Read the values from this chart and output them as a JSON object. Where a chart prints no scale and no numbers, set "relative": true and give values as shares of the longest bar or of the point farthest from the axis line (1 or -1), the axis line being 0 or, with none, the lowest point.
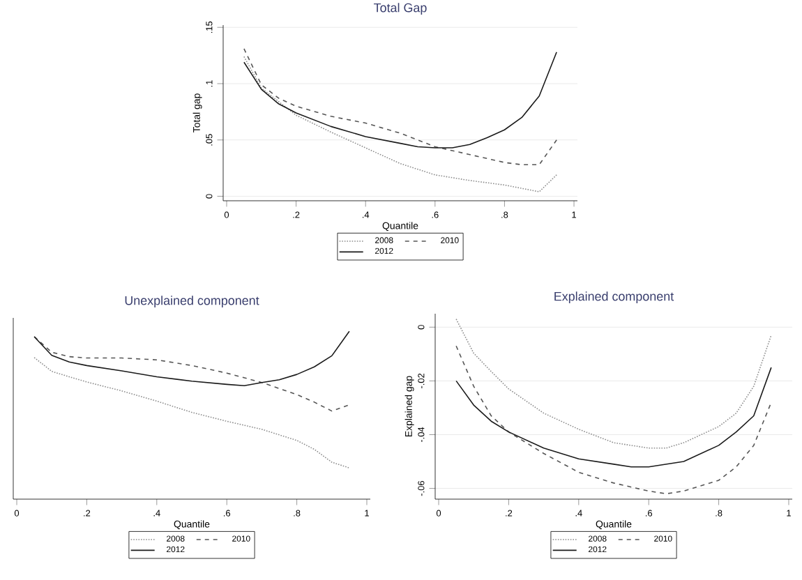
{
  "chart_data": [
    {
      "type": "line",
      "title": "Total Gap",
      "xlabel": "Quantile",
      "ylabel": "Total gap",
      "xlim": [
        -0.01,
        1.01
      ],
      "ylim": [
        -0.004,
        0.152
      ],
      "xticks": [
        0,
        {
          "value": 0.2,
          "label": ".2"
        },
        {
          "value": 0.4,
          "label": ".4"
        },
        {
          "value": 0.6,
          "label": ".6"
        },
        {
          "value": 0.8,
          "label": ".8"
        },
        1
      ],
      "yticks": [
        0,
        {
          "value": 0.05,
          "label": ".05"
        },
        {
          "value": 0.1,
          "label": ".1"
        },
        {
          "value": 0.15,
          "label": ".15"
        }
      ],
      "grid": "y",
      "legend": "bottom",
      "series": [
        {
          "name": "2008",
          "color": "#8c8c8c",
          "line_style": "dotted",
          "x": [
            0.05,
            0.1,
            0.15,
            0.2,
            0.3,
            0.4,
            0.5,
            0.6,
            0.7,
            0.8,
            0.85,
            0.9,
            0.95
          ],
          "values": [
            0.124,
            0.096,
            0.084,
            0.072,
            0.057,
            0.043,
            0.029,
            0.019,
            0.014,
            0.01,
            0.007,
            0.004,
            0.019
          ]
        },
        {
          "name": "2010",
          "color": "#555555",
          "line_style": "dashed",
          "x": [
            0.05,
            0.1,
            0.15,
            0.2,
            0.3,
            0.4,
            0.5,
            0.6,
            0.7,
            0.8,
            0.85,
            0.9,
            0.95
          ],
          "values": [
            0.131,
            0.099,
            0.087,
            0.08,
            0.071,
            0.065,
            0.056,
            0.044,
            0.037,
            0.03,
            0.028,
            0.028,
            0.05
          ]
        },
        {
          "name": "2012",
          "color": "#1a1a1a",
          "line_style": "solid",
          "x": [
            0.05,
            0.1,
            0.15,
            0.2,
            0.3,
            0.4,
            0.5,
            0.55,
            0.6,
            0.65,
            0.7,
            0.75,
            0.8,
            0.85,
            0.9,
            0.95
          ],
          "values": [
            0.119,
            0.095,
            0.082,
            0.074,
            0.062,
            0.053,
            0.047,
            0.044,
            0.043,
            0.043,
            0.046,
            0.052,
            0.059,
            0.07,
            0.089,
            0.128
          ]
        }
      ]
    },
    {
      "type": "line",
      "title": "Unexplained component",
      "xlabel": "Quantile",
      "relative": true,
      "xlim": [
        -0.01,
        1.01
      ],
      "xticks": [
        0,
        {
          "value": 0.2,
          "label": ".2"
        },
        {
          "value": 0.4,
          "label": ".4"
        },
        {
          "value": 0.6,
          "label": ".6"
        },
        {
          "value": 0.8,
          "label": ".8"
        },
        1
      ],
      "tick_labels": "x",
      "legend": "bottom",
      "series": [
        {
          "name": "2008",
          "color": "#8c8c8c",
          "line_style": "dotted",
          "x": [
            0.05,
            0.1,
            0.15,
            0.2,
            0.3,
            0.4,
            0.5,
            0.6,
            0.7,
            0.8,
            0.85,
            0.9,
            0.95
          ],
          "values": [
            0.844,
            0.761,
            0.729,
            0.698,
            0.645,
            0.584,
            0.517,
            0.464,
            0.416,
            0.35,
            0.297,
            0.22,
            0.186
          ]
        },
        {
          "name": "2010",
          "color": "#555555",
          "line_style": "dashed",
          "x": [
            0.05,
            0.1,
            0.15,
            0.2,
            0.3,
            0.4,
            0.5,
            0.6,
            0.7,
            0.8,
            0.85,
            0.9,
            0.95
          ],
          "values": [
            0.968,
            0.875,
            0.849,
            0.841,
            0.841,
            0.83,
            0.796,
            0.751,
            0.695,
            0.623,
            0.578,
            0.525,
            0.562
          ]
        },
        {
          "name": "2012",
          "color": "#1a1a1a",
          "line_style": "solid",
          "x": [
            0.05,
            0.1,
            0.15,
            0.2,
            0.3,
            0.4,
            0.5,
            0.6,
            0.65,
            0.7,
            0.75,
            0.8,
            0.85,
            0.9,
            0.95
          ],
          "values": [
            0.968,
            0.857,
            0.817,
            0.796,
            0.764,
            0.729,
            0.703,
            0.684,
            0.676,
            0.695,
            0.711,
            0.743,
            0.788,
            0.854,
            1
          ]
        }
      ]
    },
    {
      "type": "line",
      "title": "Explained component",
      "xlabel": "Quantile",
      "ylabel": "Explained gap",
      "xlim": [
        -0.01,
        1.01
      ],
      "ylim": [
        -0.064,
        0.005
      ],
      "xticks": [
        0,
        {
          "value": 0.2,
          "label": ".2"
        },
        {
          "value": 0.4,
          "label": ".4"
        },
        {
          "value": 0.6,
          "label": ".6"
        },
        {
          "value": 0.8,
          "label": ".8"
        },
        1
      ],
      "yticks": [
        {
          "value": -0.06,
          "label": "-.06"
        },
        {
          "value": -0.04,
          "label": "-.04"
        },
        {
          "value": -0.02,
          "label": "-.02"
        },
        0
      ],
      "grid": "y",
      "legend": "bottom",
      "series": [
        {
          "name": "2008",
          "color": "#8c8c8c",
          "line_style": "dotted",
          "x": [
            0.05,
            0.1,
            0.15,
            0.2,
            0.3,
            0.4,
            0.5,
            0.6,
            0.65,
            0.7,
            0.8,
            0.85,
            0.9,
            0.95
          ],
          "values": [
            0.003,
            -0.0097,
            -0.0165,
            -0.023,
            -0.032,
            -0.038,
            -0.043,
            -0.045,
            -0.045,
            -0.043,
            -0.037,
            -0.032,
            -0.022,
            -0.003
          ]
        },
        {
          "name": "2010",
          "color": "#555555",
          "line_style": "dashed",
          "x": [
            0.05,
            0.1,
            0.15,
            0.2,
            0.3,
            0.4,
            0.5,
            0.6,
            0.65,
            0.7,
            0.8,
            0.85,
            0.9,
            0.95
          ],
          "values": [
            -0.007,
            -0.022,
            -0.033,
            -0.039,
            -0.047,
            -0.054,
            -0.058,
            -0.061,
            -0.062,
            -0.061,
            -0.057,
            -0.052,
            -0.044,
            -0.028
          ]
        },
        {
          "name": "2012",
          "color": "#1a1a1a",
          "line_style": "solid",
          "x": [
            0.05,
            0.1,
            0.15,
            0.2,
            0.3,
            0.4,
            0.5,
            0.55,
            0.6,
            0.7,
            0.8,
            0.85,
            0.9,
            0.95
          ],
          "values": [
            -0.02,
            -0.029,
            -0.035,
            -0.039,
            -0.045,
            -0.049,
            -0.051,
            -0.052,
            -0.052,
            -0.05,
            -0.044,
            -0.039,
            -0.033,
            -0.015
          ]
        }
      ]
    }
  ]
}
